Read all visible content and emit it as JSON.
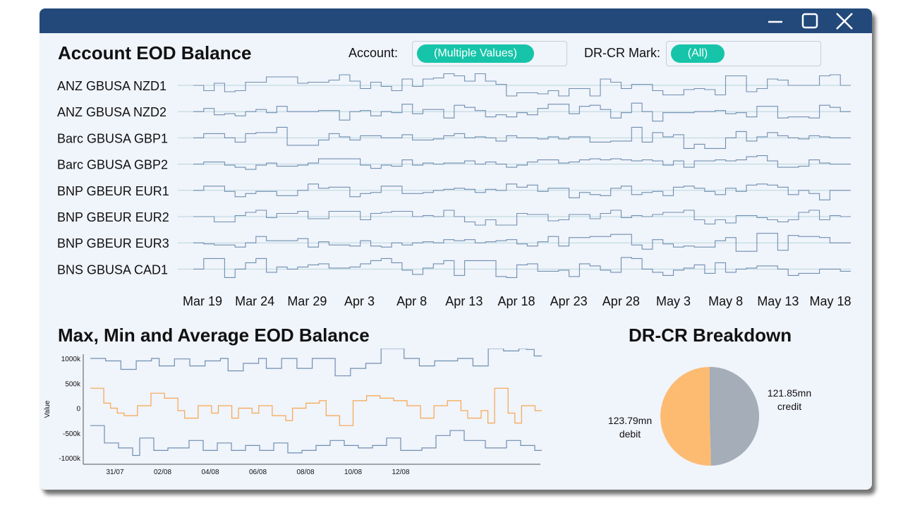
{
  "window": {
    "controls": {
      "minimize_icon": "minimize-icon",
      "maximize_icon": "maximize-icon",
      "close_icon": "close-icon"
    },
    "titlebar_color": "#22497a",
    "background_color": "#f0f4fb"
  },
  "top_panel": {
    "title": "Account EOD Balance",
    "filters": [
      {
        "label": "Account:",
        "value": "(Multiple Values)"
      },
      {
        "label": "DR-CR Mark:",
        "value": "(All)"
      }
    ],
    "pill_color": "#16c4a9"
  },
  "bottom_left": {
    "title": "Max, Min and Average EOD Balance"
  },
  "bottom_right": {
    "title": "DR-CR Breakdown"
  },
  "chart_data": [
    {
      "type": "line",
      "title": "Account EOD Balance",
      "step": true,
      "line_color": "#6f8fb0",
      "baseline_color": "#b9d6dc",
      "x_tick_labels": [
        "Mar 19",
        "Mar 24",
        "Mar 29",
        "Apr 3",
        "Apr 8",
        "Apr 13",
        "Apr 18",
        "Apr 23",
        "Apr 28",
        "May 3",
        "May 8",
        "May 13",
        "May 18"
      ],
      "x_start": "Mar 19",
      "x_end": "May 20",
      "series": [
        {
          "name": "ANZ GBUSA NZD1",
          "values": [
            0.0,
            -0.5,
            0.2,
            -0.6,
            -0.5,
            0.3,
            0.3,
            0.8,
            0.8,
            0.8,
            0.2,
            0.3,
            0.3,
            0.5,
            1.0,
            0.4,
            -0.3,
            0.3,
            -0.1,
            -0.5,
            0.6,
            -0.1,
            0.6,
            0.7,
            1.1,
            0.9,
            0.4,
            1.1,
            0.4,
            0.1,
            -1.0,
            -0.7,
            -0.7,
            -0.8,
            -0.5,
            -1.0,
            -0.3,
            -0.3,
            -1.0,
            0.6,
            0.3,
            -0.3,
            0.1,
            0.1,
            -0.5,
            -0.9,
            -0.9,
            -0.4,
            -0.3,
            -0.4,
            -0.9,
            0.9,
            0.9,
            -0.6,
            -0.3,
            0.6,
            0.5,
            0.0,
            0.0,
            0.0,
            0.9,
            1.0,
            0.0
          ]
        },
        {
          "name": "ANZ GBUSA NZD2",
          "values": [
            0.0,
            0.3,
            -0.3,
            -0.2,
            -0.4,
            0.0,
            0.2,
            -0.1,
            0.5,
            0.0,
            0.0,
            0.0,
            0.1,
            0.1,
            -0.8,
            0.0,
            0.1,
            -0.4,
            0.0,
            -0.1,
            0.7,
            -0.2,
            0.2,
            0.2,
            -0.6,
            0.6,
            0.4,
            0.1,
            -0.5,
            -0.3,
            -0.5,
            -0.1,
            -0.3,
            0.3,
            0.7,
            0.7,
            -0.2,
            0.5,
            0.6,
            0.2,
            -0.6,
            -0.1,
            0.8,
            0.0,
            -0.9,
            -0.1,
            -0.1,
            -0.1,
            0.0,
            0.0,
            0.1,
            -0.2,
            -0.1,
            -0.5,
            0.5,
            0.5,
            -0.6,
            -0.5,
            -0.5,
            -0.6,
            0.6,
            0.4,
            0.0
          ]
        },
        {
          "name": "Barc GBUSA GBP1",
          "values": [
            0.0,
            0.4,
            0.4,
            0.0,
            -0.4,
            0.4,
            0.5,
            0.5,
            1.0,
            -0.7,
            -0.7,
            -0.7,
            -0.2,
            0.4,
            0.1,
            -0.2,
            0.2,
            0.2,
            0.0,
            0.0,
            0.3,
            -0.2,
            -0.2,
            -0.1,
            0.2,
            0.4,
            0.0,
            0.1,
            0.0,
            -0.3,
            0.2,
            0.0,
            0.0,
            -0.1,
            0.1,
            -0.1,
            0.1,
            0.1,
            -0.4,
            -0.4,
            -0.3,
            -0.3,
            1.0,
            -0.4,
            0.5,
            0.1,
            0.3,
            -1.0,
            -0.6,
            -1.0,
            -1.0,
            0.0,
            0.6,
            -0.3,
            0.1,
            0.5,
            0.2,
            0.0,
            -0.1,
            0.2,
            0.1,
            0.0,
            0.0
          ]
        },
        {
          "name": "Barc GBUSA GBP2",
          "values": [
            0.0,
            0.2,
            0.2,
            -0.1,
            -0.3,
            -0.5,
            -0.1,
            0.1,
            -0.2,
            -0.2,
            -0.1,
            0.1,
            0.5,
            0.5,
            0.5,
            0.5,
            -0.1,
            -0.4,
            -0.1,
            -0.2,
            0.4,
            -0.1,
            0.1,
            0.0,
            0.1,
            0.1,
            0.3,
            0.0,
            0.2,
            0.0,
            -0.3,
            -0.1,
            0.2,
            0.4,
            0.4,
            0.1,
            0.2,
            0.4,
            0.5,
            0.4,
            0.5,
            0.4,
            0.3,
            0.4,
            0.3,
            -0.1,
            0.3,
            -0.3,
            0.3,
            0.3,
            0.4,
            0.3,
            0.4,
            0.7,
            0.8,
            0.3,
            -0.3,
            -0.3,
            -0.2,
            0.4,
            0.1,
            0.0,
            0.0
          ]
        },
        {
          "name": "BNP GBEUR EUR1",
          "values": [
            0.0,
            0.4,
            0.4,
            -0.1,
            -0.6,
            -0.3,
            -0.1,
            -0.1,
            -0.5,
            -0.5,
            0.0,
            0.6,
            0.2,
            0.3,
            0.3,
            -0.6,
            -0.3,
            -0.2,
            0.4,
            0.4,
            -0.3,
            -0.3,
            -0.2,
            0.0,
            0.1,
            0.2,
            0.1,
            -0.2,
            0.1,
            0.0,
            0.6,
            0.3,
            0.5,
            -0.1,
            0.2,
            0.2,
            -0.7,
            -0.2,
            -0.4,
            -0.5,
            0.2,
            0.4,
            -0.4,
            -0.2,
            -0.1,
            -0.5,
            0.3,
            0.4,
            0.2,
            -0.1,
            -0.4,
            0.2,
            -0.1,
            0.5,
            0.6,
            0.5,
            0.3,
            -0.4,
            0.0,
            -0.3,
            -0.9,
            0.0,
            0.0
          ]
        },
        {
          "name": "BNP GBEUR EUR2",
          "values": [
            0.0,
            0.0,
            -0.5,
            -0.5,
            0.1,
            0.4,
            0.6,
            -0.1,
            0.3,
            0.3,
            0.5,
            -0.2,
            -0.2,
            0.5,
            0.5,
            0.5,
            -0.3,
            0.3,
            0.4,
            0.5,
            0.5,
            0.0,
            0.1,
            0.0,
            0.6,
            0.0,
            -0.5,
            -0.8,
            -0.3,
            -0.8,
            -0.8,
            0.3,
            0.2,
            0.2,
            -0.4,
            -0.3,
            0.2,
            0.2,
            -0.2,
            0.3,
            0.6,
            -0.1,
            0.1,
            0.0,
            0.2,
            0.4,
            0.4,
            0.6,
            -0.3,
            -0.7,
            -0.3,
            -0.6,
            0.1,
            0.1,
            -0.1,
            -0.3,
            -0.5,
            -0.3,
            0.4,
            0.6,
            -0.3,
            0.1,
            0.0
          ]
        },
        {
          "name": "BNP GBEUR EUR3",
          "values": [
            0.0,
            -0.1,
            -0.2,
            -0.2,
            -0.4,
            0.0,
            0.6,
            0.2,
            0.2,
            0.2,
            0.4,
            -0.4,
            0.1,
            -0.2,
            -0.2,
            -0.3,
            0.2,
            -0.3,
            -0.4,
            0.0,
            -0.2,
            0.0,
            0.1,
            0.0,
            0.3,
            0.2,
            0.3,
            0.0,
            0.1,
            0.2,
            0.3,
            -0.1,
            -0.3,
            0.1,
            0.6,
            -0.3,
            0.5,
            0.5,
            0.6,
            0.6,
            0.8,
            0.8,
            -0.2,
            -0.6,
            0.3,
            -0.1,
            -0.4,
            -0.3,
            -0.4,
            -0.4,
            0.2,
            0.5,
            -0.8,
            -0.8,
            0.9,
            0.9,
            -0.7,
            0.7,
            0.6,
            0.6,
            0.5,
            0.0,
            0.0
          ]
        },
        {
          "name": "BNS GBUSA CAD1",
          "values": [
            0.0,
            1.0,
            1.0,
            -0.8,
            0.0,
            0.6,
            1.0,
            -0.3,
            0.2,
            0.0,
            0.2,
            0.4,
            0.5,
            0.1,
            0.1,
            0.2,
            0.5,
            0.8,
            1.0,
            0.6,
            -0.1,
            -0.5,
            0.1,
            0.5,
            0.8,
            -0.6,
            0.8,
            0.8,
            0.8,
            -0.7,
            -0.8,
            0.4,
            0.5,
            -0.2,
            -0.2,
            -0.1,
            -0.7,
            0.5,
            0.3,
            -0.1,
            -0.3,
            1.1,
            1.0,
            0.0,
            -0.3,
            -0.6,
            -0.1,
            0.1,
            0.4,
            -0.4,
            0.6,
            -0.3,
            0.0,
            0.1,
            0.3,
            0.3,
            0.0,
            -0.6,
            -0.4,
            -0.4,
            0.0,
            0.0,
            -0.2
          ]
        }
      ]
    },
    {
      "type": "line",
      "title": "Max, Min and Average EOD Balance",
      "step": true,
      "ylabel": "Value",
      "y_ticks": [
        1000,
        500,
        0,
        -500,
        -1000
      ],
      "y_tick_labels": [
        "1000k",
        "500k",
        "0",
        "-500k",
        "-1000k"
      ],
      "ylim": [
        -1100,
        1100
      ],
      "x_tick_labels": [
        "31/07",
        "02/08",
        "04/08",
        "06/08",
        "08/08",
        "10/08",
        "12/08"
      ],
      "series": [
        {
          "color": "#6f8fb0",
          "values": [
            1000,
            1000,
            950,
            950,
            780,
            780,
            950,
            950,
            1000,
            850,
            850,
            990,
            990,
            850,
            850,
            950,
            950,
            1000,
            750,
            750,
            900,
            900,
            1000,
            800,
            800,
            1000,
            1000,
            800,
            800,
            1000,
            1000,
            1000,
            650,
            650,
            800,
            800,
            900,
            900,
            1200,
            1200,
            1200,
            1000,
            1000,
            850,
            850,
            950,
            950,
            950,
            1000,
            1000,
            850,
            850,
            1200,
            1200,
            1150,
            1150,
            1200,
            1180,
            1050
          ]
        },
        {
          "color": "#f5a650",
          "values": [
            400,
            400,
            100,
            0,
            -100,
            -150,
            -150,
            50,
            50,
            300,
            300,
            200,
            200,
            -50,
            -200,
            -200,
            50,
            50,
            -100,
            50,
            50,
            -200,
            0,
            0,
            -100,
            50,
            50,
            -150,
            -150,
            -250,
            0,
            0,
            100,
            100,
            150,
            -150,
            -150,
            -350,
            -350,
            150,
            150,
            250,
            250,
            200,
            200,
            150,
            150,
            50,
            50,
            -200,
            -200,
            50,
            50,
            150,
            150,
            -50,
            -200,
            -200,
            -50,
            -300,
            400,
            400,
            -100,
            -300,
            50,
            50,
            -50
          ]
        },
        {
          "color": "#6f8fb0",
          "values": [
            -350,
            -350,
            -700,
            -700,
            -800,
            -800,
            -950,
            -600,
            -600,
            -850,
            -850,
            -800,
            -800,
            -800,
            -650,
            -650,
            -850,
            -850,
            -700,
            -700,
            -850,
            -850,
            -750,
            -750,
            -850,
            -850,
            -700,
            -700,
            -900,
            -900,
            -850,
            -850,
            -750,
            -750,
            -650,
            -650,
            -750,
            -750,
            -800,
            -800,
            -750,
            -750,
            -600,
            -600,
            -850,
            -850,
            -850,
            -800,
            -800,
            -550,
            -550,
            -450,
            -450,
            -650,
            -650,
            -650,
            -800,
            -800,
            -800,
            -650,
            -650,
            -750,
            -750,
            -850
          ]
        }
      ]
    },
    {
      "type": "pie",
      "title": "DR-CR Breakdown",
      "slices": [
        {
          "label": "credit",
          "display_value": "121.85mn",
          "value": 121.85,
          "color": "#a4adb8"
        },
        {
          "label": "debit",
          "display_value": "123.79mn",
          "value": 123.79,
          "color": "#fdbb72"
        }
      ]
    }
  ]
}
